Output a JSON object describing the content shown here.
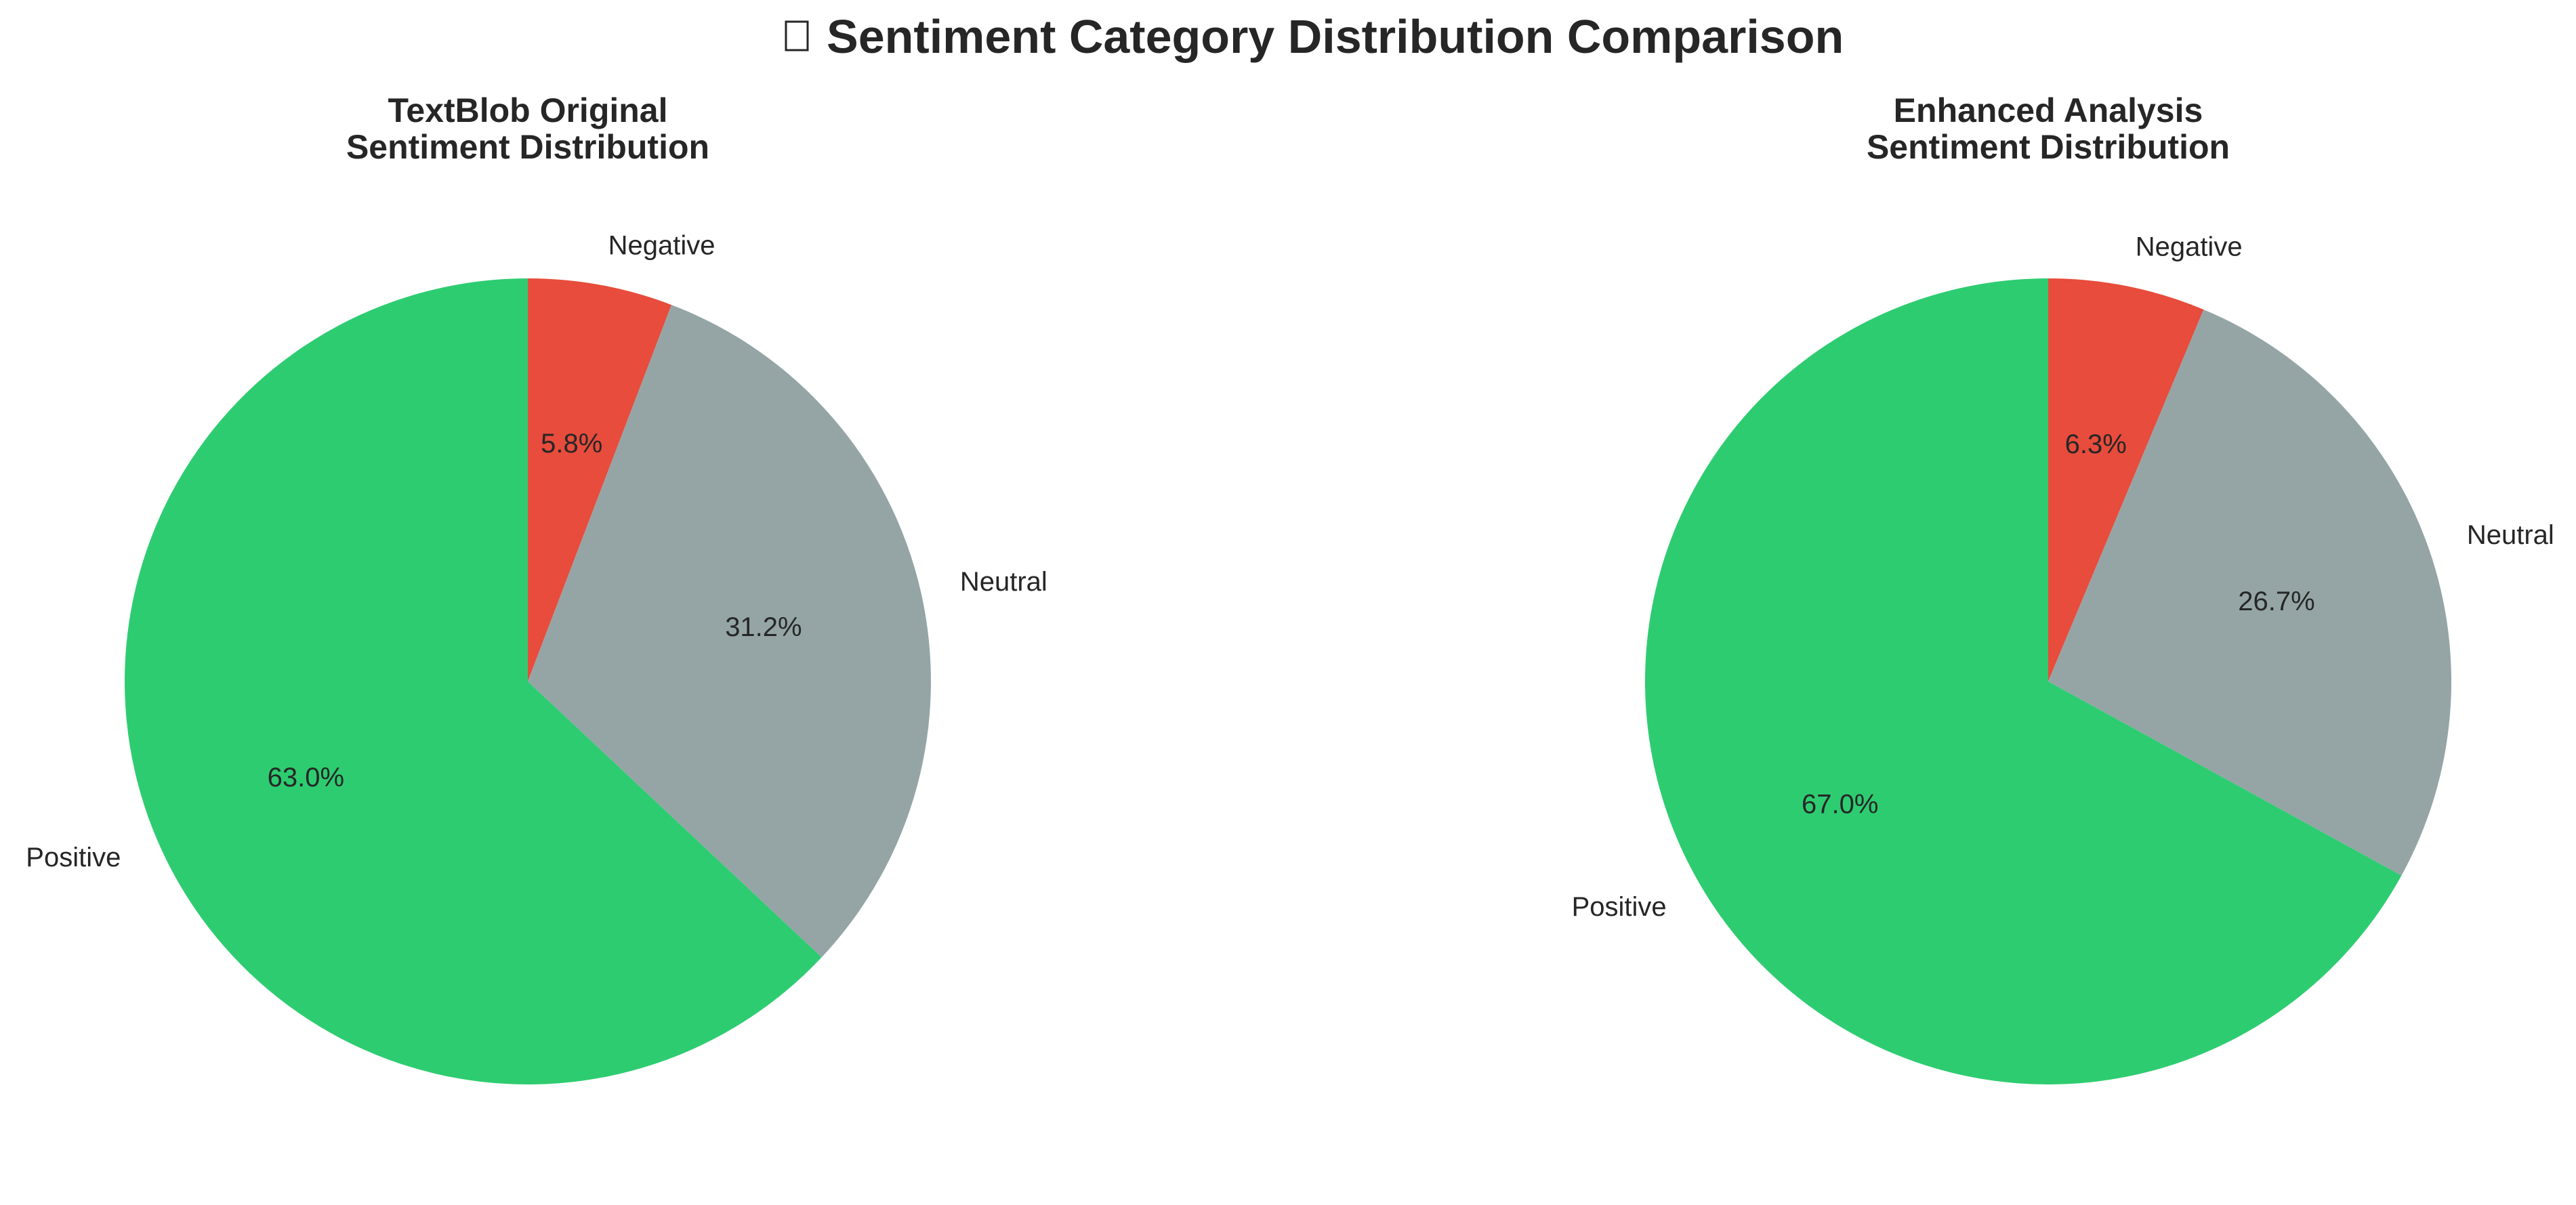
{
  "figure": {
    "title": "Sentiment Category Distribution Comparison"
  },
  "chart_data": [
    {
      "type": "pie",
      "title_lines": [
        "TextBlob Original",
        "Sentiment Distribution"
      ],
      "labels": [
        "Negative",
        "Neutral",
        "Positive"
      ],
      "values": [
        5.8,
        31.2,
        63.0
      ],
      "value_labels": [
        "5.8%",
        "31.2%",
        "63.0%"
      ],
      "colors": [
        "#e74c3c",
        "#95a5a6",
        "#2ecc71"
      ],
      "start": "12 o'clock",
      "direction": "clockwise",
      "legend": "none"
    },
    {
      "type": "pie",
      "title_lines": [
        "Enhanced Analysis",
        "Sentiment Distribution"
      ],
      "labels": [
        "Negative",
        "Neutral",
        "Positive"
      ],
      "values": [
        6.3,
        26.7,
        67.0
      ],
      "value_labels": [
        "6.3%",
        "26.7%",
        "67.0%"
      ],
      "colors": [
        "#e74c3c",
        "#95a5a6",
        "#2ecc71"
      ],
      "start": "12 o'clock",
      "direction": "clockwise",
      "legend": "none"
    }
  ]
}
